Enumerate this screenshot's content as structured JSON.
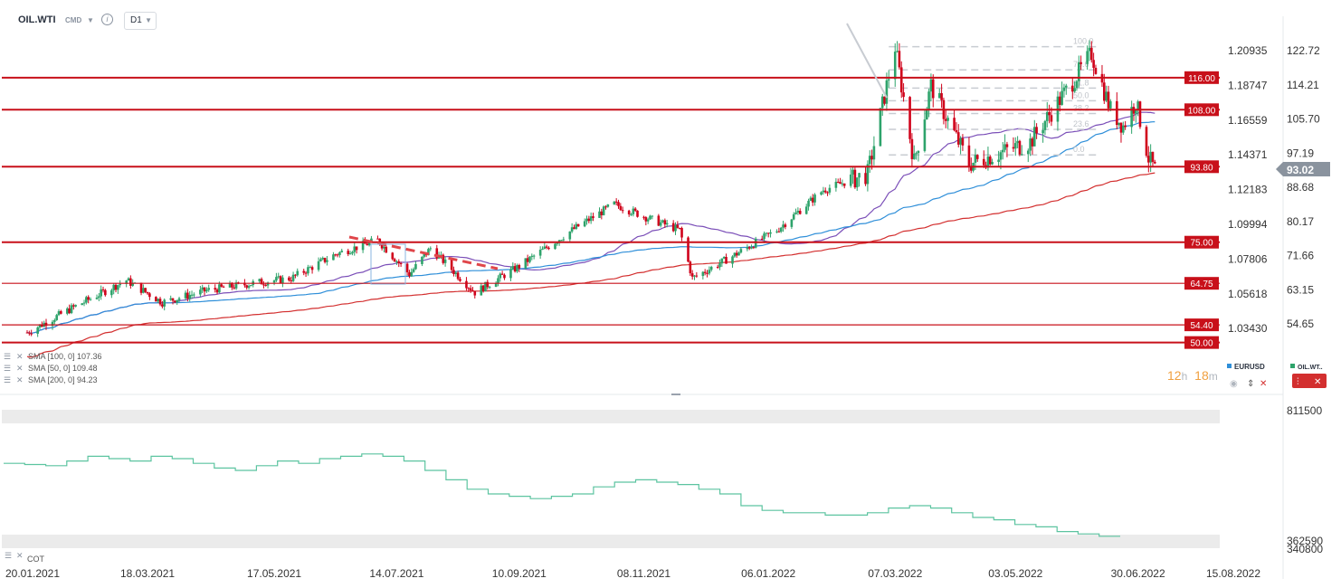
{
  "toolbar": {
    "symbol": "OIL.WTI",
    "market_tag": "CMD",
    "info_icon": "info-icon",
    "timeframe": "D1"
  },
  "main_axis_left": [
    "1.20935",
    "1.18747",
    "1.16559",
    "1.14371",
    "1.12183",
    "1.09994",
    "1.07806",
    "1.05618",
    "1.03430"
  ],
  "main_axis_right": [
    "122.72",
    "114.21",
    "105.70",
    "97.19",
    "88.68",
    "80.17",
    "71.66",
    "63.15",
    "54.65"
  ],
  "last_price": "93.02",
  "levels": [
    {
      "label": "116.00",
      "value": 116.0
    },
    {
      "label": "108.00",
      "value": 108.0
    },
    {
      "label": "93.80",
      "value": 93.8
    },
    {
      "label": "75.00",
      "value": 75.0
    },
    {
      "label": "64.75",
      "value": 64.75
    },
    {
      "label": "54.40",
      "value": 54.4
    },
    {
      "label": "50.00",
      "value": 50.0
    }
  ],
  "indicators": [
    {
      "name": "SMA [100, 0] 107.36",
      "color": "#2f8fd9"
    },
    {
      "name": "SMA [50, 0] 109.48",
      "color": "#7b4fb8"
    },
    {
      "name": "SMA [200, 0] 94.23",
      "color": "#d32f2f"
    }
  ],
  "fib_labels": [
    "100.0",
    "78.6",
    "61.8",
    "50.0",
    "38.2",
    "23.6",
    "0.0"
  ],
  "countdown": {
    "hours": "12",
    "h": "h",
    "minutes": "18",
    "m": "m"
  },
  "overlay_symbols": [
    {
      "name": "EURUSD",
      "color": "#2f8fd9"
    },
    {
      "name": "OIL.WT..",
      "color": "#2ea36b"
    }
  ],
  "icons": {
    "eye": "eye-icon",
    "swap": "swap-icon",
    "close": "close-icon",
    "candles": "candles-icon"
  },
  "cot_axis": [
    "811500",
    "362590",
    "340800"
  ],
  "cot_label": "COT",
  "x_dates": [
    "20.01.2021",
    "18.03.2021",
    "17.05.2021",
    "14.07.2021",
    "10.09.2021",
    "08.11.2021",
    "06.01.2022",
    "07.03.2022",
    "03.05.2022",
    "30.06.2022",
    "15.08.2022"
  ],
  "chart_data": {
    "type": "candlestick",
    "title": "OIL.WTI",
    "timeframe": "D1",
    "x_range": [
      "20.01.2021",
      "15.08.2022"
    ],
    "y_ticks": [
      54.65,
      63.15,
      71.66,
      80.17,
      88.68,
      97.19,
      105.7,
      114.21,
      122.72
    ],
    "secondary_y_ticks": [
      1.0343,
      1.05618,
      1.07806,
      1.09994,
      1.12183,
      1.14371,
      1.16559,
      1.18747,
      1.20935
    ],
    "close_path": [
      {
        "x": "20.01.2021",
        "y": 52.5
      },
      {
        "x": "10.02.2021",
        "y": 58.5
      },
      {
        "x": "08.03.2021",
        "y": 65.5
      },
      {
        "x": "25.03.2021",
        "y": 60.0
      },
      {
        "x": "15.04.2021",
        "y": 63.0
      },
      {
        "x": "10.05.2021",
        "y": 65.0
      },
      {
        "x": "25.05.2021",
        "y": 66.0
      },
      {
        "x": "15.06.2021",
        "y": 72.0
      },
      {
        "x": "05.07.2021",
        "y": 75.5
      },
      {
        "x": "20.07.2021",
        "y": 67.0
      },
      {
        "x": "30.07.2021",
        "y": 73.5
      },
      {
        "x": "20.08.2021",
        "y": 62.5
      },
      {
        "x": "10.09.2021",
        "y": 69.0
      },
      {
        "x": "05.10.2021",
        "y": 78.0
      },
      {
        "x": "25.10.2021",
        "y": 84.5
      },
      {
        "x": "10.11.2021",
        "y": 81.0
      },
      {
        "x": "25.11.2021",
        "y": 78.0
      },
      {
        "x": "01.12.2021",
        "y": 66.0
      },
      {
        "x": "20.12.2021",
        "y": 71.5
      },
      {
        "x": "10.01.2022",
        "y": 78.0
      },
      {
        "x": "01.02.2022",
        "y": 88.0
      },
      {
        "x": "22.02.2022",
        "y": 92.0
      },
      {
        "x": "07.03.2022",
        "y": 123.7
      },
      {
        "x": "16.03.2022",
        "y": 95.0
      },
      {
        "x": "24.03.2022",
        "y": 114.0
      },
      {
        "x": "11.04.2022",
        "y": 94.5
      },
      {
        "x": "10.05.2022",
        "y": 100.0
      },
      {
        "x": "30.05.2022",
        "y": 115.0
      },
      {
        "x": "08.06.2022",
        "y": 122.0
      },
      {
        "x": "17.06.2022",
        "y": 108.0
      },
      {
        "x": "23.06.2022",
        "y": 104.0
      },
      {
        "x": "29.06.2022",
        "y": 110.0
      },
      {
        "x": "05.07.2022",
        "y": 96.0
      },
      {
        "x": "08.07.2022",
        "y": 93.02
      }
    ],
    "fib_high": 123.7,
    "fib_low": 94.5,
    "cot_range": [
      340800,
      811500
    ]
  }
}
